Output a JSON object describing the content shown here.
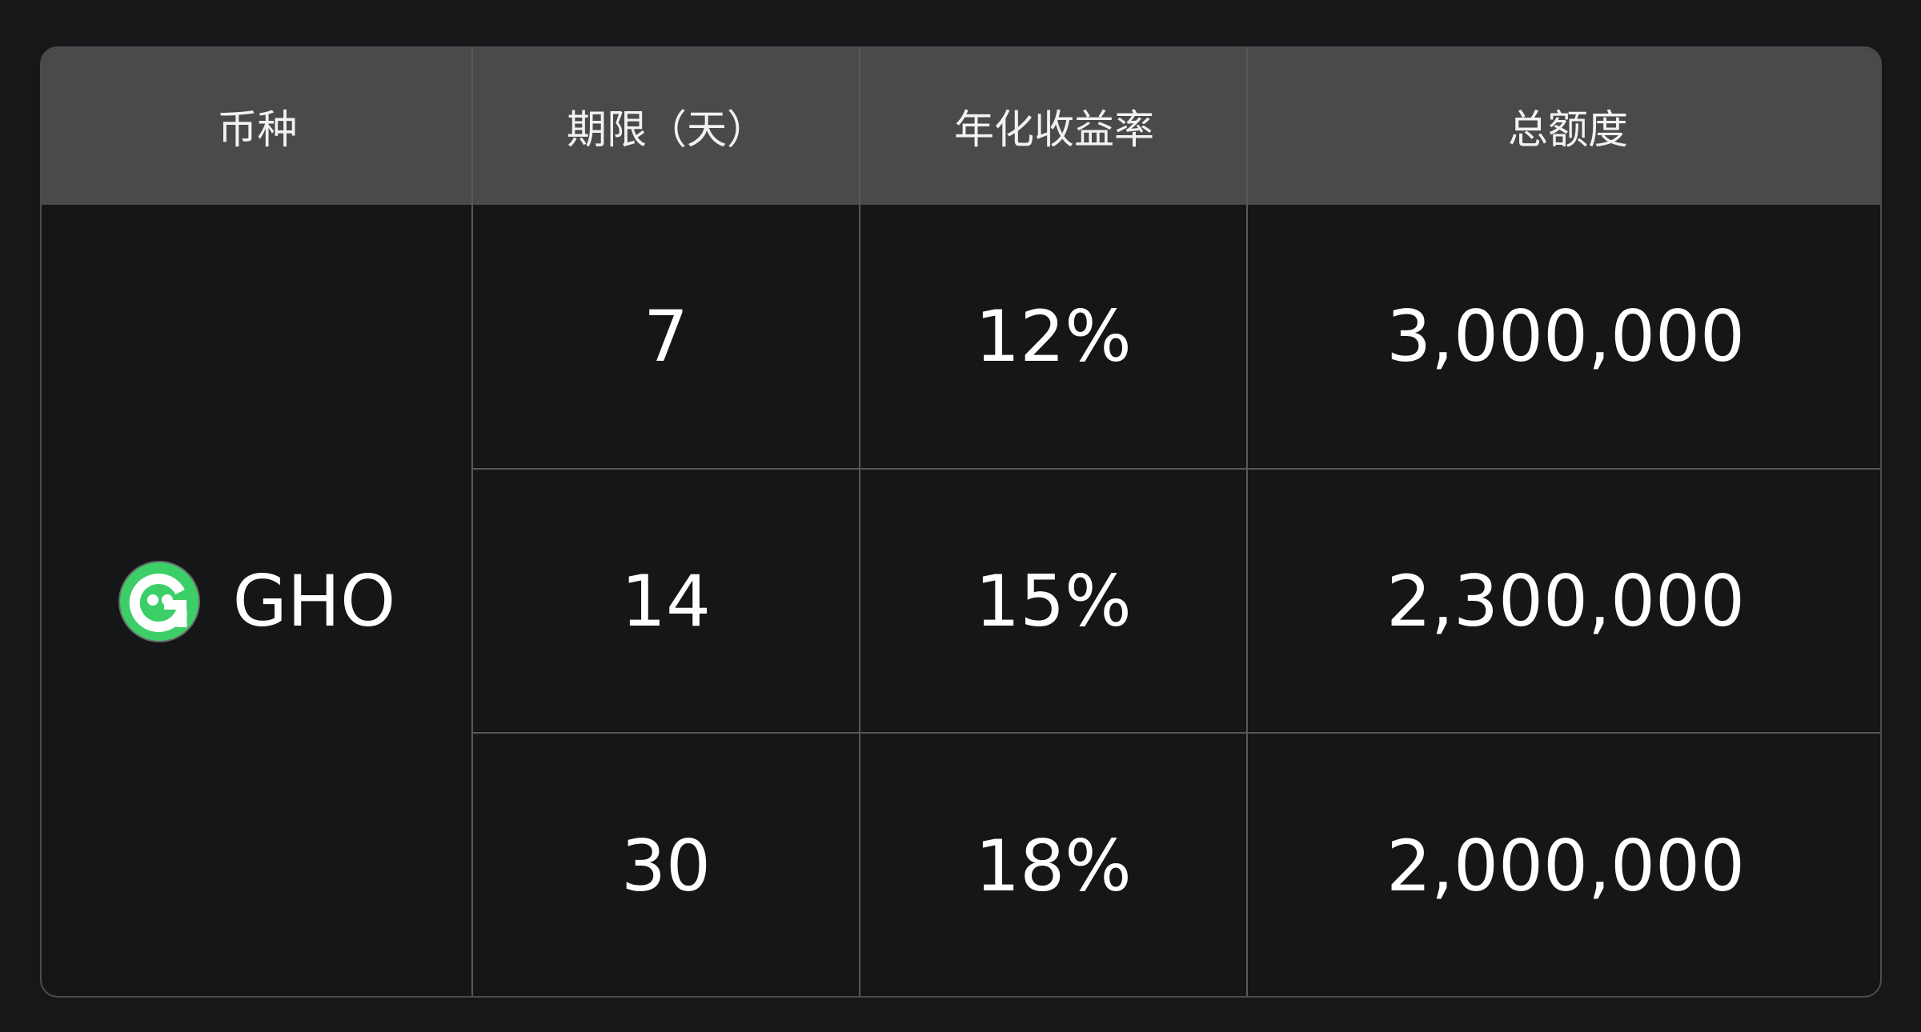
{
  "headers": [
    "币种",
    "期限（天）",
    "年化收益率",
    "总额度"
  ],
  "coin": {
    "name": "GHO",
    "icon": "gho-logo-icon",
    "icon_color": "#3ccf68"
  },
  "rows": [
    {
      "term": "7",
      "apy": "12%",
      "total": "3,000,000"
    },
    {
      "term": "14",
      "apy": "15%",
      "total": "2,300,000"
    },
    {
      "term": "30",
      "apy": "18%",
      "total": "2,000,000"
    }
  ]
}
